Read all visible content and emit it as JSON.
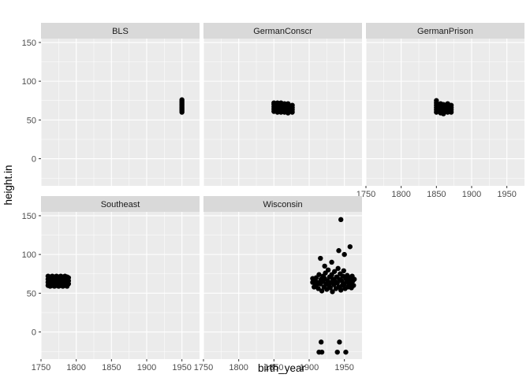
{
  "chart_data": {
    "type": "scatter",
    "facet_wrap": true,
    "xlabel": "birth_year",
    "ylabel": "height.in",
    "xlim": [
      1750,
      1975
    ],
    "ylim": [
      -35,
      155
    ],
    "x_ticks": [
      1750,
      1800,
      1850,
      1900,
      1950
    ],
    "y_ticks": [
      0,
      50,
      100,
      150
    ],
    "grid": true,
    "panel_background": "#ebebeb",
    "strip_background": "#d9d9d9",
    "grid_color": "#ffffff",
    "point_color": "#000000",
    "panels": [
      {
        "name": "BLS",
        "points": [
          {
            "x": 1950,
            "y": 60
          },
          {
            "x": 1950,
            "y": 62
          },
          {
            "x": 1950,
            "y": 64
          },
          {
            "x": 1950,
            "y": 66
          },
          {
            "x": 1950,
            "y": 68
          },
          {
            "x": 1950,
            "y": 70
          },
          {
            "x": 1950,
            "y": 72
          },
          {
            "x": 1950,
            "y": 74
          },
          {
            "x": 1950,
            "y": 76
          }
        ]
      },
      {
        "name": "GermanConscr",
        "points": [
          {
            "x": 1850,
            "y": 61
          },
          {
            "x": 1850,
            "y": 64
          },
          {
            "x": 1850,
            "y": 67
          },
          {
            "x": 1850,
            "y": 70
          },
          {
            "x": 1850,
            "y": 72
          },
          {
            "x": 1855,
            "y": 60
          },
          {
            "x": 1855,
            "y": 63
          },
          {
            "x": 1855,
            "y": 66
          },
          {
            "x": 1855,
            "y": 69
          },
          {
            "x": 1855,
            "y": 72
          },
          {
            "x": 1860,
            "y": 60
          },
          {
            "x": 1860,
            "y": 63
          },
          {
            "x": 1860,
            "y": 66
          },
          {
            "x": 1860,
            "y": 69
          },
          {
            "x": 1860,
            "y": 72
          },
          {
            "x": 1865,
            "y": 60
          },
          {
            "x": 1865,
            "y": 63
          },
          {
            "x": 1865,
            "y": 66
          },
          {
            "x": 1865,
            "y": 69
          },
          {
            "x": 1865,
            "y": 71
          },
          {
            "x": 1870,
            "y": 59
          },
          {
            "x": 1870,
            "y": 62
          },
          {
            "x": 1870,
            "y": 65
          },
          {
            "x": 1870,
            "y": 68
          },
          {
            "x": 1870,
            "y": 71
          },
          {
            "x": 1876,
            "y": 60
          },
          {
            "x": 1876,
            "y": 63
          },
          {
            "x": 1876,
            "y": 66
          },
          {
            "x": 1876,
            "y": 69
          }
        ]
      },
      {
        "name": "GermanPrison",
        "points": [
          {
            "x": 1850,
            "y": 60
          },
          {
            "x": 1850,
            "y": 63
          },
          {
            "x": 1850,
            "y": 66
          },
          {
            "x": 1850,
            "y": 69
          },
          {
            "x": 1850,
            "y": 72
          },
          {
            "x": 1850,
            "y": 75
          },
          {
            "x": 1856,
            "y": 59
          },
          {
            "x": 1856,
            "y": 62
          },
          {
            "x": 1856,
            "y": 65
          },
          {
            "x": 1856,
            "y": 68
          },
          {
            "x": 1856,
            "y": 71
          },
          {
            "x": 1860,
            "y": 58
          },
          {
            "x": 1860,
            "y": 61
          },
          {
            "x": 1860,
            "y": 64
          },
          {
            "x": 1860,
            "y": 67
          },
          {
            "x": 1860,
            "y": 70
          },
          {
            "x": 1866,
            "y": 60
          },
          {
            "x": 1866,
            "y": 63
          },
          {
            "x": 1866,
            "y": 66
          },
          {
            "x": 1866,
            "y": 69
          },
          {
            "x": 1866,
            "y": 71
          },
          {
            "x": 1871,
            "y": 60
          },
          {
            "x": 1871,
            "y": 63
          },
          {
            "x": 1871,
            "y": 66
          },
          {
            "x": 1871,
            "y": 69
          }
        ]
      },
      {
        "name": "Southeast",
        "points": [
          {
            "x": 1760,
            "y": 60
          },
          {
            "x": 1760,
            "y": 64
          },
          {
            "x": 1760,
            "y": 68
          },
          {
            "x": 1760,
            "y": 72
          },
          {
            "x": 1763,
            "y": 59
          },
          {
            "x": 1763,
            "y": 63
          },
          {
            "x": 1763,
            "y": 67
          },
          {
            "x": 1763,
            "y": 71
          },
          {
            "x": 1766,
            "y": 60
          },
          {
            "x": 1766,
            "y": 64
          },
          {
            "x": 1766,
            "y": 68
          },
          {
            "x": 1766,
            "y": 72
          },
          {
            "x": 1769,
            "y": 59
          },
          {
            "x": 1769,
            "y": 63
          },
          {
            "x": 1769,
            "y": 67
          },
          {
            "x": 1769,
            "y": 71
          },
          {
            "x": 1772,
            "y": 60
          },
          {
            "x": 1772,
            "y": 64
          },
          {
            "x": 1772,
            "y": 68
          },
          {
            "x": 1772,
            "y": 72
          },
          {
            "x": 1775,
            "y": 59
          },
          {
            "x": 1775,
            "y": 63
          },
          {
            "x": 1775,
            "y": 67
          },
          {
            "x": 1775,
            "y": 71
          },
          {
            "x": 1778,
            "y": 60
          },
          {
            "x": 1778,
            "y": 64
          },
          {
            "x": 1778,
            "y": 68
          },
          {
            "x": 1778,
            "y": 72
          },
          {
            "x": 1781,
            "y": 59
          },
          {
            "x": 1781,
            "y": 63
          },
          {
            "x": 1781,
            "y": 67
          },
          {
            "x": 1781,
            "y": 71
          },
          {
            "x": 1784,
            "y": 60
          },
          {
            "x": 1784,
            "y": 64
          },
          {
            "x": 1784,
            "y": 68
          },
          {
            "x": 1784,
            "y": 72
          },
          {
            "x": 1787,
            "y": 59
          },
          {
            "x": 1787,
            "y": 63
          },
          {
            "x": 1787,
            "y": 67
          },
          {
            "x": 1787,
            "y": 71
          },
          {
            "x": 1789,
            "y": 62
          },
          {
            "x": 1789,
            "y": 66
          },
          {
            "x": 1789,
            "y": 70
          }
        ]
      },
      {
        "name": "Wisconsin",
        "points": [
          {
            "x": 1905,
            "y": 64
          },
          {
            "x": 1905,
            "y": 69
          },
          {
            "x": 1907,
            "y": 58
          },
          {
            "x": 1908,
            "y": 66
          },
          {
            "x": 1910,
            "y": 60
          },
          {
            "x": 1910,
            "y": 70
          },
          {
            "x": 1912,
            "y": 64
          },
          {
            "x": 1913,
            "y": 56
          },
          {
            "x": 1914,
            "y": 74
          },
          {
            "x": 1916,
            "y": 95
          },
          {
            "x": 1916,
            "y": 62
          },
          {
            "x": 1917,
            "y": 68
          },
          {
            "x": 1918,
            "y": 53
          },
          {
            "x": 1919,
            "y": 65
          },
          {
            "x": 1920,
            "y": 72
          },
          {
            "x": 1921,
            "y": 58
          },
          {
            "x": 1922,
            "y": 69
          },
          {
            "x": 1923,
            "y": 76
          },
          {
            "x": 1924,
            "y": 62
          },
          {
            "x": 1925,
            "y": 55
          },
          {
            "x": 1926,
            "y": 66
          },
          {
            "x": 1927,
            "y": 80
          },
          {
            "x": 1928,
            "y": 60
          },
          {
            "x": 1929,
            "y": 71
          },
          {
            "x": 1930,
            "y": 57
          },
          {
            "x": 1931,
            "y": 64
          },
          {
            "x": 1932,
            "y": 74
          },
          {
            "x": 1933,
            "y": 52
          },
          {
            "x": 1934,
            "y": 68
          },
          {
            "x": 1935,
            "y": 61
          },
          {
            "x": 1936,
            "y": 78
          },
          {
            "x": 1937,
            "y": 65
          },
          {
            "x": 1938,
            "y": 56
          },
          {
            "x": 1939,
            "y": 71
          },
          {
            "x": 1940,
            "y": 63
          },
          {
            "x": 1941,
            "y": 82
          },
          {
            "x": 1942,
            "y": 58
          },
          {
            "x": 1943,
            "y": 68
          },
          {
            "x": 1944,
            "y": 75
          },
          {
            "x": 1945,
            "y": 54
          },
          {
            "x": 1946,
            "y": 66
          },
          {
            "x": 1947,
            "y": 60
          },
          {
            "x": 1948,
            "y": 72
          },
          {
            "x": 1949,
            "y": 79
          },
          {
            "x": 1950,
            "y": 62
          },
          {
            "x": 1951,
            "y": 56
          },
          {
            "x": 1952,
            "y": 69
          },
          {
            "x": 1953,
            "y": 65
          },
          {
            "x": 1954,
            "y": 73
          },
          {
            "x": 1955,
            "y": 58
          },
          {
            "x": 1956,
            "y": 67
          },
          {
            "x": 1957,
            "y": 61
          },
          {
            "x": 1958,
            "y": 70
          },
          {
            "x": 1959,
            "y": 64
          },
          {
            "x": 1960,
            "y": 57
          },
          {
            "x": 1961,
            "y": 72
          },
          {
            "x": 1962,
            "y": 66
          },
          {
            "x": 1963,
            "y": 60
          },
          {
            "x": 1964,
            "y": 68
          },
          {
            "x": 1945,
            "y": 145
          },
          {
            "x": 1958,
            "y": 110
          },
          {
            "x": 1942,
            "y": 105
          },
          {
            "x": 1950,
            "y": 100
          },
          {
            "x": 1932,
            "y": 90
          },
          {
            "x": 1922,
            "y": 85
          },
          {
            "x": 1917,
            "y": -13
          },
          {
            "x": 1943,
            "y": -13
          },
          {
            "x": 1914,
            "y": -26
          },
          {
            "x": 1918,
            "y": -26
          },
          {
            "x": 1940,
            "y": -26
          },
          {
            "x": 1952,
            "y": -26
          }
        ]
      }
    ]
  }
}
